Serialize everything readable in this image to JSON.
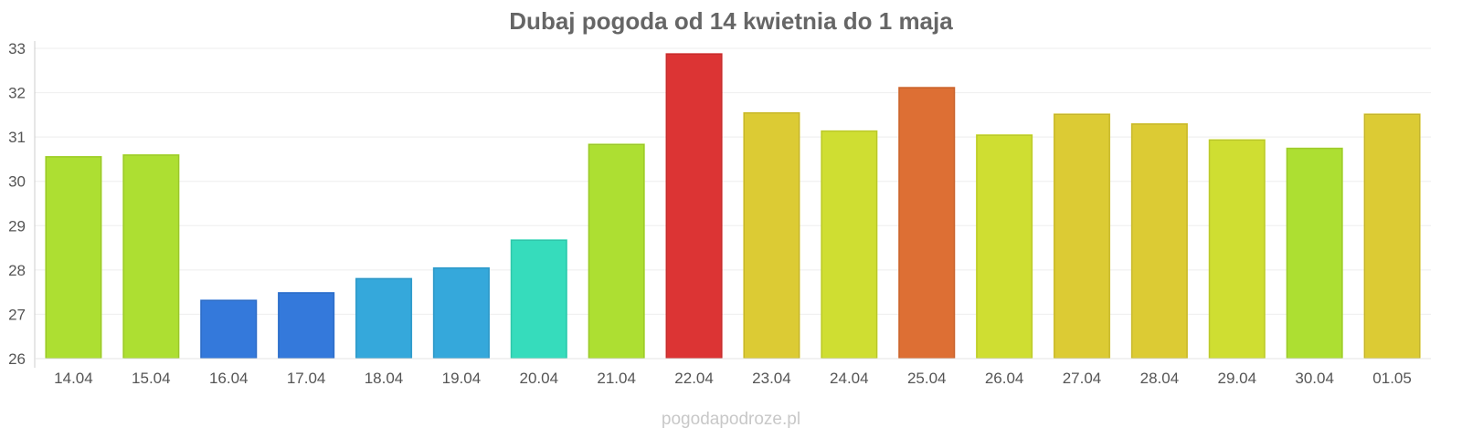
{
  "chart_data": {
    "type": "bar",
    "title": "Dubaj pogoda od 14 kwietnia do 1 maja",
    "categories": [
      "14.04",
      "15.04",
      "16.04",
      "17.04",
      "18.04",
      "19.04",
      "20.04",
      "21.04",
      "22.04",
      "23.04",
      "24.04",
      "25.04",
      "26.04",
      "27.04",
      "28.04",
      "29.04",
      "30.04",
      "01.05"
    ],
    "values": [
      30.56,
      30.6,
      27.32,
      27.49,
      27.81,
      28.05,
      28.68,
      30.84,
      32.88,
      31.55,
      31.14,
      32.12,
      31.05,
      31.52,
      31.3,
      30.94,
      30.75,
      31.52
    ],
    "colors": [
      "#addf32",
      "#addf32",
      "#3479db",
      "#3479db",
      "#35a8db",
      "#35a8db",
      "#36dcbc",
      "#addf32",
      "#dc3434",
      "#dccb34",
      "#cfde32",
      "#dd6f34",
      "#cfde32",
      "#dccb34",
      "#dccb34",
      "#cfde32",
      "#addf32",
      "#dccb34"
    ],
    "ylim": [
      26,
      33
    ],
    "yticks": [
      "26",
      "27",
      "28",
      "29",
      "30",
      "31",
      "32",
      "33"
    ],
    "xlabel": "",
    "ylabel": "",
    "grid": true,
    "legend": "none"
  },
  "watermark": "pogodapodroze.pl"
}
